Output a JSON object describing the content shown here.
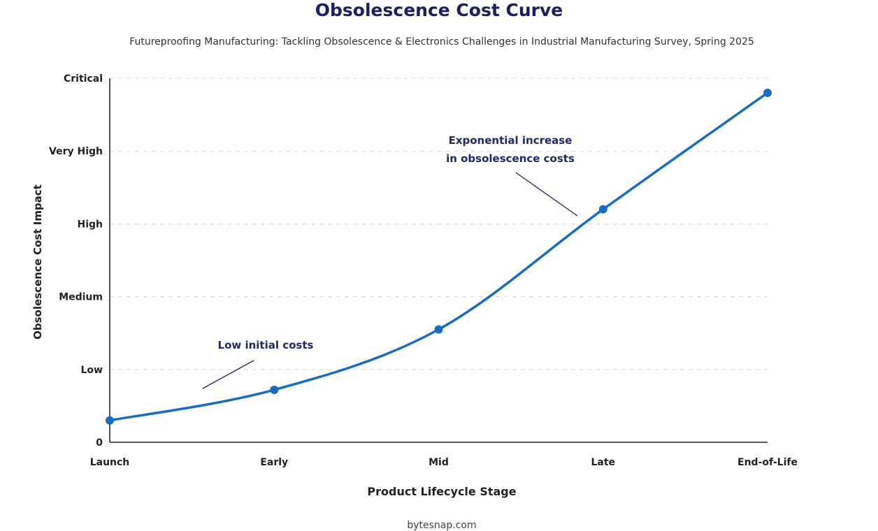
{
  "chart_data": {
    "type": "line",
    "title": "Obsolescence Cost Curve",
    "subtitle": "Futureproofing Manufacturing: Tackling Obsolescence & Electronics Challenges in Industrial Manufacturing Survey, Spring 2025",
    "xlabel": "Product Lifecycle Stage",
    "ylabel": "Obsolescence Cost Impact",
    "categories": [
      "Launch",
      "Early",
      "Mid",
      "Late",
      "End-of-Life"
    ],
    "values": [
      0.3,
      0.72,
      1.55,
      3.2,
      4.8
    ],
    "y_ticks": [
      "0",
      "Low",
      "Medium",
      "High",
      "Very High",
      "Critical"
    ],
    "ylim": [
      0,
      5
    ],
    "grid": "horizontal dashed",
    "line_color": "#1a6cc0",
    "annotations": [
      {
        "lines": [
          "Low initial costs"
        ]
      },
      {
        "lines": [
          "Exponential increase",
          "in obsolescence costs"
        ]
      }
    ],
    "source": "bytesnap.com"
  }
}
